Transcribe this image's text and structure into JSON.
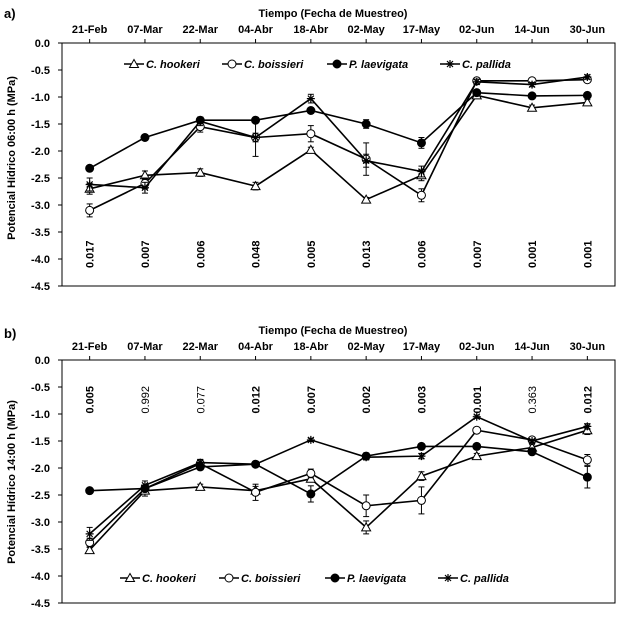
{
  "chart_data": [
    {
      "panel_label": "a)",
      "type": "line",
      "title": "Tiempo (Fecha de Muestreo)",
      "xlabel": "Tiempo (Fecha de Muestreo)",
      "ylabel": "Potencial Hídrico 06:00 h (MPa)",
      "categories": [
        "21-Feb",
        "07-Mar",
        "22-Mar",
        "04-Abr",
        "18-Abr",
        "02-May",
        "17-May",
        "02-Jun",
        "14-Jun",
        "30-Jun"
      ],
      "yticks": [
        "0.0",
        "-0.5",
        "-1.0",
        "-1.5",
        "-2.0",
        "-2.5",
        "-3.0",
        "-3.5",
        "-4.0",
        "-4.5"
      ],
      "ylim": [
        -4.5,
        0
      ],
      "pvalues": [
        "0.017",
        "0.007",
        "0.006",
        "0.048",
        "0.005",
        "0.013",
        "0.006",
        "0.007",
        "0.001",
        "0.001"
      ],
      "pvalue_styles": [
        "bold",
        "bold",
        "bold",
        "bold",
        "bold",
        "bold",
        "bold",
        "bold",
        "bold",
        "bold"
      ],
      "legend": [
        "C. hookeri",
        "C. boissieri",
        "P. laevigata",
        "C. pallida"
      ],
      "series": [
        {
          "name": "C. hookeri",
          "marker": "triangle-open",
          "values": [
            -2.7,
            -2.45,
            -2.4,
            -2.65,
            -1.98,
            -2.9,
            -2.45,
            -0.97,
            -1.2,
            -1.1
          ],
          "errors": [
            0.1,
            0.08,
            0.07,
            0.07,
            0.05,
            0.04,
            0.1,
            0.05,
            0.05,
            0.05
          ]
        },
        {
          "name": "C. boissieri",
          "marker": "circle-open",
          "values": [
            -3.1,
            -2.6,
            -1.55,
            -1.75,
            -1.68,
            -2.15,
            -2.82,
            -0.7,
            -0.7,
            -0.68
          ],
          "errors": [
            0.12,
            0.1,
            0.1,
            0.35,
            0.15,
            0.3,
            0.12,
            0.05,
            0.05,
            0.05
          ]
        },
        {
          "name": "P. laevigata",
          "marker": "circle-filled",
          "values": [
            -2.32,
            -1.75,
            -1.43,
            -1.43,
            -1.25,
            -1.5,
            -1.85,
            -0.92,
            -0.98,
            -0.97
          ],
          "errors": [
            0.05,
            0.05,
            0.05,
            0.05,
            0.05,
            0.08,
            0.1,
            0.05,
            0.04,
            0.04
          ]
        },
        {
          "name": "C. pallida",
          "marker": "star",
          "values": [
            -2.62,
            -2.68,
            -1.45,
            -1.75,
            -1.03,
            -2.18,
            -2.38,
            -0.72,
            -0.77,
            -0.63
          ],
          "errors": [
            0.12,
            0.1,
            0.08,
            0.08,
            0.08,
            0.12,
            0.1,
            0.05,
            0.04,
            0.04
          ]
        }
      ]
    },
    {
      "panel_label": "b)",
      "type": "line",
      "title": "Tiempo (Fecha de Muestreo)",
      "xlabel": "Tiempo (Fecha de Muestreo)",
      "ylabel": "Potencial Hídrico 14:00 h (MPa)",
      "categories": [
        "21-Feb",
        "07-Mar",
        "22-Mar",
        "04-Abr",
        "18-Abr",
        "02-May",
        "17-May",
        "02-Jun",
        "14-Jun",
        "30-Jun"
      ],
      "yticks": [
        "0.0",
        "-0.5",
        "-1.0",
        "-1.5",
        "-2.0",
        "-2.5",
        "-3.0",
        "-3.5",
        "-4.0",
        "-4.5"
      ],
      "ylim": [
        -4.5,
        0
      ],
      "pvalues": [
        "0.005",
        "0.992",
        "0.077",
        "0.012",
        "0.007",
        "0.002",
        "0.003",
        "0.001",
        "0.363",
        "0.012"
      ],
      "pvalue_styles": [
        "bold",
        "normal",
        "normal",
        "bold",
        "bold",
        "bold",
        "bold",
        "bold",
        "normal",
        "bold"
      ],
      "legend": [
        "C. hookeri",
        "C. boissieri",
        "P. laevigata",
        "C. pallida"
      ],
      "series": [
        {
          "name": "C. hookeri",
          "marker": "triangle-open",
          "values": [
            -3.52,
            -2.42,
            -2.35,
            -2.42,
            -2.2,
            -3.1,
            -2.15,
            -1.78,
            -1.62,
            -1.3
          ],
          "errors": [
            0.05,
            0.1,
            0.05,
            0.08,
            0.05,
            0.12,
            0.08,
            0.05,
            0.05,
            0.08
          ]
        },
        {
          "name": "C. boissieri",
          "marker": "circle-open",
          "values": [
            -3.38,
            -2.38,
            -1.92,
            -2.45,
            -2.1,
            -2.7,
            -2.6,
            -1.3,
            -1.48,
            -1.85
          ],
          "errors": [
            0.08,
            0.05,
            0.08,
            0.15,
            0.08,
            0.2,
            0.25,
            0.05,
            0.05,
            0.1
          ]
        },
        {
          "name": "P. laevigata",
          "marker": "circle-filled",
          "values": [
            -2.42,
            -2.38,
            -1.98,
            -1.93,
            -2.48,
            -1.78,
            -1.6,
            -1.6,
            -1.7,
            -2.17
          ],
          "errors": [
            0.03,
            0.05,
            0.05,
            0.05,
            0.15,
            0.06,
            0.05,
            0.05,
            0.05,
            0.2
          ]
        },
        {
          "name": "C. pallida",
          "marker": "star",
          "values": [
            -3.22,
            -2.32,
            -1.9,
            -1.93,
            -1.48,
            -1.8,
            -1.78,
            -1.05,
            -1.5,
            -1.23
          ],
          "errors": [
            0.12,
            0.08,
            0.05,
            0.05,
            0.03,
            0.05,
            0.05,
            0.03,
            0.03,
            0.05
          ]
        }
      ]
    }
  ]
}
